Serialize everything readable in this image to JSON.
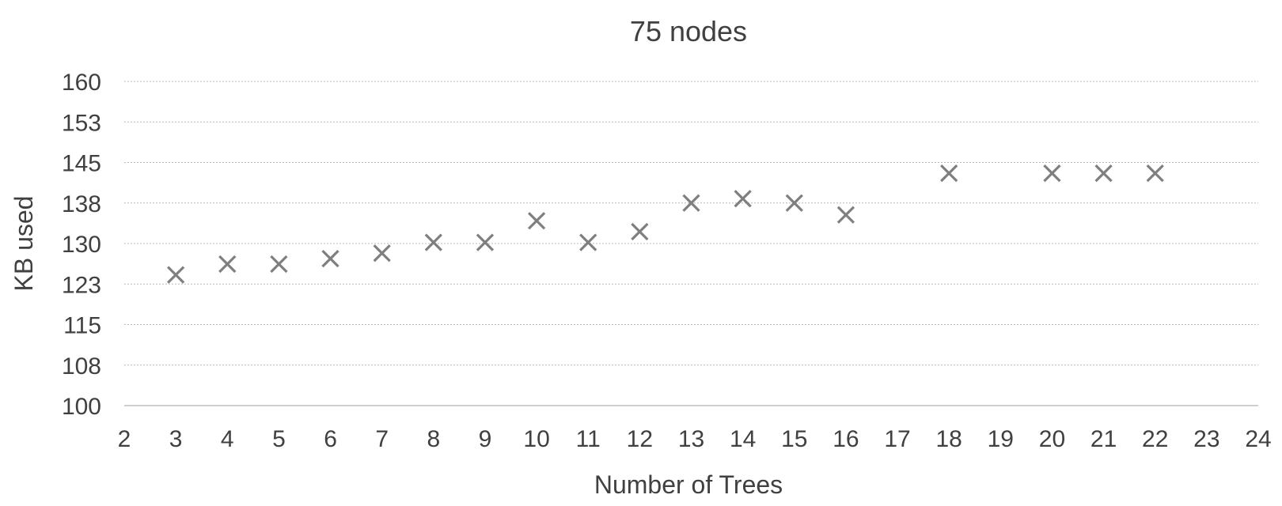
{
  "chart_data": {
    "type": "scatter",
    "title": "75 nodes",
    "xlabel": "Number of Trees",
    "ylabel": "KB used",
    "xlim": [
      2,
      24
    ],
    "ylim": [
      100,
      160
    ],
    "x_ticks": [
      "2",
      "3",
      "4",
      "5",
      "6",
      "7",
      "8",
      "9",
      "10",
      "11",
      "12",
      "13",
      "14",
      "15",
      "16",
      "17",
      "18",
      "19",
      "20",
      "21",
      "22",
      "23",
      "24"
    ],
    "y_ticks": [
      "160",
      "153",
      "145",
      "138",
      "130",
      "123",
      "115",
      "108",
      "100"
    ],
    "y_tick_values": [
      160,
      152.5,
      145,
      137.5,
      130,
      122.5,
      115,
      107.5,
      100
    ],
    "grid": true,
    "marker": "x",
    "marker_color": "#7f7f7f",
    "series": [
      {
        "x": [
          3,
          4,
          5,
          6,
          7,
          8,
          9,
          10,
          11,
          12,
          13,
          14,
          15,
          16,
          18,
          20,
          21,
          22
        ],
        "y": [
          124.2,
          126.2,
          126.2,
          127.2,
          128.2,
          130.2,
          130.2,
          134.2,
          130.2,
          132.2,
          137.5,
          138.3,
          137.5,
          135.3,
          143.0,
          143.0,
          143.0,
          143.0
        ]
      }
    ]
  }
}
